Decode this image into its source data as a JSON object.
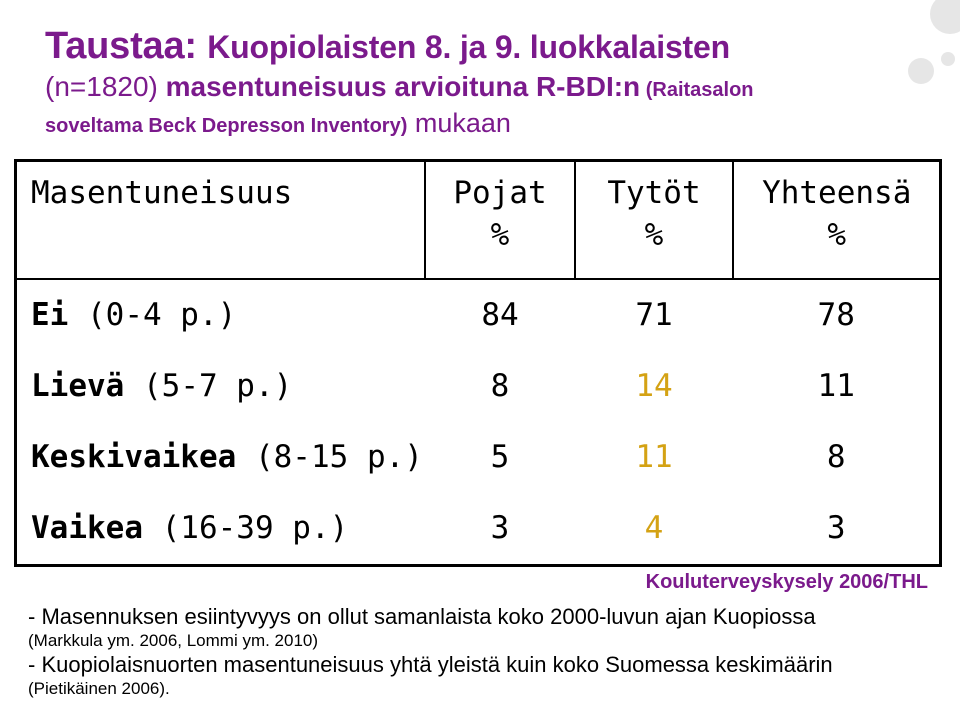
{
  "title": {
    "line1_main": "Taustaa: ",
    "line1_rest": "Kuopiolaisten 8. ja 9. luokkalaisten",
    "line2_prefix": "(n=1820) ",
    "line2_main": "masentuneisuus arvioituna R-BDI:n",
    "line2_suffix": " (Raitasalon",
    "line3_prefix": "soveltama Beck Depresson Inventory)",
    "line3_main": " mukaan"
  },
  "table": {
    "headers": [
      {
        "line1": "Masentuneisuus",
        "line2": ""
      },
      {
        "line1": "Pojat",
        "line2": "%"
      },
      {
        "line1": "Tytöt",
        "line2": "%"
      },
      {
        "line1": "Yhteensä",
        "line2": "%"
      }
    ],
    "rows": [
      {
        "label_bold": "Ei",
        "label_rest": " (0-4 p.)",
        "boys": "84",
        "girls": "71",
        "total": "78"
      },
      {
        "label_bold": "Lievä",
        "label_rest": " (5-7 p.)",
        "boys": "8",
        "girls": "14",
        "total": "11"
      },
      {
        "label_bold": "Keskivaikea",
        "label_rest": " (8-15 p.)",
        "boys": "5",
        "girls": "11",
        "total": "8"
      },
      {
        "label_bold": "Vaikea",
        "label_rest": " (16-39 p.)",
        "boys": "3",
        "girls": "4",
        "total": "3"
      }
    ]
  },
  "source": "Kouluterveyskysely 2006/THL",
  "notes": {
    "n1_line1": "- Masennuksen esiintyvyys on ollut samanlaista koko 2000-luvun ajan Kuopiossa",
    "n1_line2": "(Markkula ym. 2006, Lommi ym. 2010)",
    "n2_line1": "- Kuopiolaisnuorten masentuneisuus yhtä yleistä kuin koko Suomessa keskimäärin",
    "n2_line2": "(Pietikäinen 2006)."
  },
  "colors": {
    "title": "#7b1a8c",
    "girls_values": "#d4a214",
    "decoration": "#e6e6e6"
  }
}
